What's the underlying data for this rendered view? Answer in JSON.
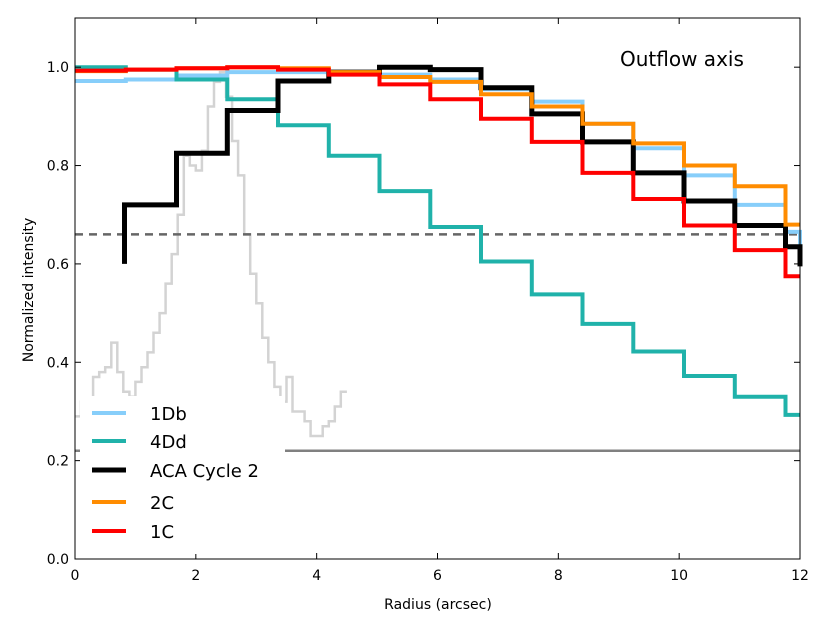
{
  "chart_data": {
    "type": "line",
    "step": true,
    "title": "",
    "annotation": "Outflow axis",
    "xlabel": "Radius (arcsec)",
    "ylabel": "Normalized intensity",
    "xlim": [
      0,
      12
    ],
    "ylim": [
      0.0,
      1.1
    ],
    "xticks": [
      0,
      2,
      4,
      6,
      8,
      10,
      12
    ],
    "xtick_labels": [
      "0",
      "2",
      "4",
      "6",
      "8",
      "10",
      "12"
    ],
    "yticks": [
      0.0,
      0.2,
      0.4,
      0.6,
      0.8,
      1.0
    ],
    "ytick_labels": [
      "0.0",
      "0.2",
      "0.4",
      "0.6",
      "0.8",
      "1.0"
    ],
    "grid": false,
    "legend_position": "lower-left",
    "reference_lines": [
      {
        "name": "dashed-reference",
        "y": 0.66,
        "style": "dashed",
        "color": "#666666"
      },
      {
        "name": "solid-reference",
        "y": 0.22,
        "style": "solid",
        "color": "#808080"
      }
    ],
    "series": [
      {
        "name": "1Db",
        "color": "#87cefa",
        "width": 4,
        "edges": [
          0,
          0.84,
          1.68,
          2.52,
          3.36,
          4.2,
          5.04,
          5.88,
          6.72,
          7.56,
          8.4,
          9.24,
          10.08,
          10.92,
          11.76,
          12
        ],
        "values": [
          0.972,
          0.975,
          0.983,
          0.99,
          0.99,
          0.99,
          0.985,
          0.975,
          0.955,
          0.93,
          0.885,
          0.835,
          0.78,
          0.72,
          0.665,
          0.61
        ]
      },
      {
        "name": "4Dd",
        "color": "#20b2aa",
        "width": 4,
        "edges": [
          0,
          0.84,
          1.68,
          2.52,
          3.36,
          4.2,
          5.04,
          5.88,
          6.72,
          7.56,
          8.4,
          9.24,
          10.08,
          10.92,
          11.76,
          12
        ],
        "values": [
          1.0,
          0.995,
          0.975,
          0.935,
          0.882,
          0.82,
          0.748,
          0.675,
          0.605,
          0.538,
          0.478,
          0.422,
          0.372,
          0.33,
          0.293,
          0.293
        ]
      },
      {
        "name": "ACA Cycle 2",
        "color": "#000000",
        "width": 5,
        "edges": [
          0.82,
          1.68,
          2.52,
          3.36,
          4.2,
          5.04,
          5.88,
          6.72,
          7.56,
          8.4,
          9.24,
          10.08,
          10.92,
          11.76,
          12
        ],
        "values": [
          0.72,
          0.825,
          0.912,
          0.972,
          0.99,
          1.0,
          0.995,
          0.958,
          0.905,
          0.848,
          0.785,
          0.728,
          0.678,
          0.635,
          0.595
        ]
      },
      {
        "name": "2C",
        "color": "#ff8c00",
        "width": 4,
        "edges": [
          0,
          0.84,
          1.68,
          2.52,
          3.36,
          4.2,
          5.04,
          5.88,
          6.72,
          7.56,
          8.4,
          9.24,
          10.08,
          10.92,
          11.76,
          12
        ],
        "values": [
          0.992,
          0.995,
          0.998,
          1.0,
          0.998,
          0.99,
          0.98,
          0.97,
          0.945,
          0.92,
          0.885,
          0.845,
          0.8,
          0.758,
          0.68,
          0.68
        ]
      },
      {
        "name": "1C",
        "color": "#ff0000",
        "width": 4,
        "edges": [
          0,
          0.84,
          1.68,
          2.52,
          3.36,
          4.2,
          5.04,
          5.88,
          6.72,
          7.56,
          8.4,
          9.24,
          10.08,
          10.92,
          11.76,
          12
        ],
        "values": [
          0.993,
          0.995,
          0.998,
          1.0,
          0.995,
          0.985,
          0.965,
          0.935,
          0.895,
          0.848,
          0.785,
          0.732,
          0.678,
          0.628,
          0.575,
          0.575
        ]
      }
    ],
    "beam_profile": {
      "name": "beam-profile",
      "color": "#d3d3d3",
      "width": 2.5,
      "x": [
        0.05,
        0.15,
        0.25,
        0.35,
        0.45,
        0.55,
        0.65,
        0.75,
        0.85,
        0.95,
        1.05,
        1.15,
        1.25,
        1.35,
        1.45,
        1.55,
        1.65,
        1.75,
        1.85,
        1.95,
        2.05,
        2.15,
        2.25,
        2.35,
        2.45,
        2.55,
        2.65,
        2.75,
        2.85,
        2.95,
        3.05,
        3.15,
        3.25,
        3.35,
        3.45,
        3.55,
        3.65,
        3.75,
        3.85,
        3.95,
        4.05,
        4.15,
        4.25,
        4.35,
        4.45
      ],
      "y": [
        0.29,
        0.32,
        0.3,
        0.37,
        0.38,
        0.39,
        0.44,
        0.38,
        0.34,
        0.33,
        0.36,
        0.39,
        0.42,
        0.46,
        0.5,
        0.56,
        0.62,
        0.7,
        0.82,
        0.8,
        0.79,
        0.83,
        0.92,
        0.97,
        0.99,
        0.94,
        0.85,
        0.78,
        0.66,
        0.58,
        0.52,
        0.45,
        0.4,
        0.35,
        0.32,
        0.37,
        0.3,
        0.3,
        0.28,
        0.25,
        0.25,
        0.27,
        0.28,
        0.31,
        0.34
      ]
    }
  }
}
